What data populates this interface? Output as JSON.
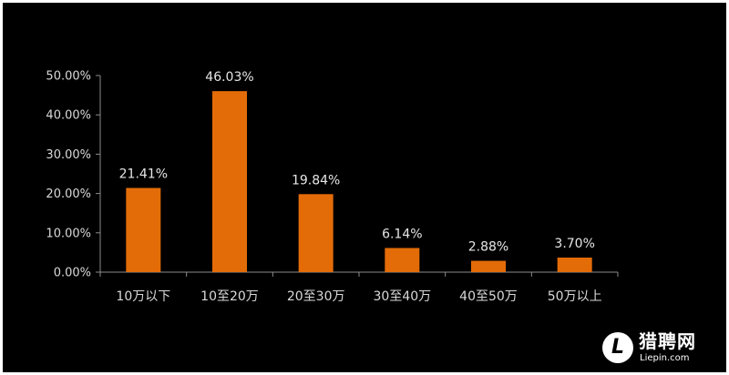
{
  "chart_data": {
    "type": "bar",
    "categories": [
      "10万以下",
      "10至20万",
      "20至30万",
      "30至40万",
      "40至50万",
      "50万以上"
    ],
    "values": [
      21.41,
      46.03,
      19.84,
      6.14,
      2.88,
      3.7
    ],
    "value_labels": [
      "21.41%",
      "46.03%",
      "19.84%",
      "6.14%",
      "2.88%",
      "3.70%"
    ],
    "yticks": [
      0,
      10,
      20,
      30,
      40,
      50
    ],
    "ytick_labels": [
      "0.00%",
      "10.00%",
      "20.00%",
      "30.00%",
      "40.00%",
      "50.00%"
    ],
    "ylim": [
      0,
      50
    ],
    "title": "",
    "xlabel": "",
    "ylabel": "",
    "grid": false,
    "legend": "none",
    "colors": {
      "bar": "#e36c09",
      "background": "#000000",
      "axis": "#8c8c8c",
      "text": "#d9d9d9"
    }
  },
  "watermark": {
    "icon_letter": "L",
    "name": "猎聘网",
    "domain": "Liepin.com"
  }
}
